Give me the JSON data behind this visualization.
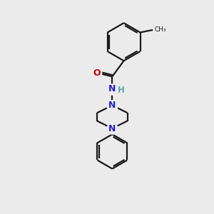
{
  "background_color": "#ebebeb",
  "bond_color": "#1a1a1a",
  "N_color": "#2222cc",
  "O_color": "#cc0000",
  "H_color": "#5aabab",
  "bond_lw": 1.6,
  "figsize": [
    3.0,
    3.0
  ],
  "dpi": 100,
  "xlim": [
    0,
    10
  ],
  "ylim": [
    0,
    10
  ]
}
